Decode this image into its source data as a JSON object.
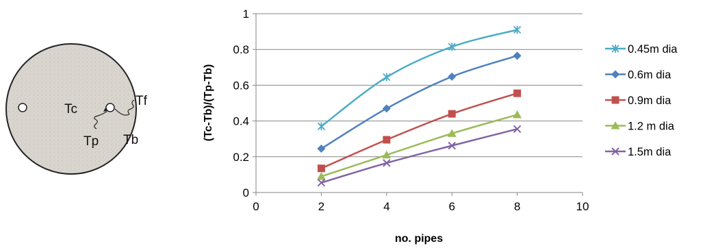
{
  "diagram": {
    "labels": {
      "tc": "Tc",
      "tf": "Tf",
      "tp": "Tp",
      "tb": "Tb"
    }
  },
  "chart_data": {
    "type": "line",
    "xlabel": "no. pipes",
    "ylabel": "(Tc-Tb)/(Tp-Tb)",
    "xlim": [
      0,
      10
    ],
    "ylim": [
      0,
      1
    ],
    "xticks": [
      0,
      2,
      4,
      6,
      8,
      10
    ],
    "yticks": [
      0,
      0.2,
      0.4,
      0.6,
      0.8,
      1
    ],
    "ytick_labels": [
      "0",
      "0.2",
      "0.4",
      "0.6",
      "0.8",
      "1"
    ],
    "grid": "horizontal",
    "legend_position": "right",
    "smooth": true,
    "x": [
      2,
      4,
      6,
      8
    ],
    "series": [
      {
        "name": "0.45m dia",
        "values": [
          0.37,
          0.645,
          0.815,
          0.91
        ],
        "color": "#4BACC6",
        "marker": "star"
      },
      {
        "name": "0.6m dia",
        "values": [
          0.245,
          0.47,
          0.648,
          0.765
        ],
        "color": "#4F81BD",
        "marker": "diamond"
      },
      {
        "name": "0.9m dia",
        "values": [
          0.135,
          0.295,
          0.44,
          0.555
        ],
        "color": "#C0504D",
        "marker": "square"
      },
      {
        "name": "1.2 m dia",
        "values": [
          0.09,
          0.21,
          0.33,
          0.435
        ],
        "color": "#9BBB59",
        "marker": "triangle"
      },
      {
        "name": "1.5m dia",
        "values": [
          0.055,
          0.165,
          0.262,
          0.355
        ],
        "color": "#8064A2",
        "marker": "x"
      }
    ]
  }
}
